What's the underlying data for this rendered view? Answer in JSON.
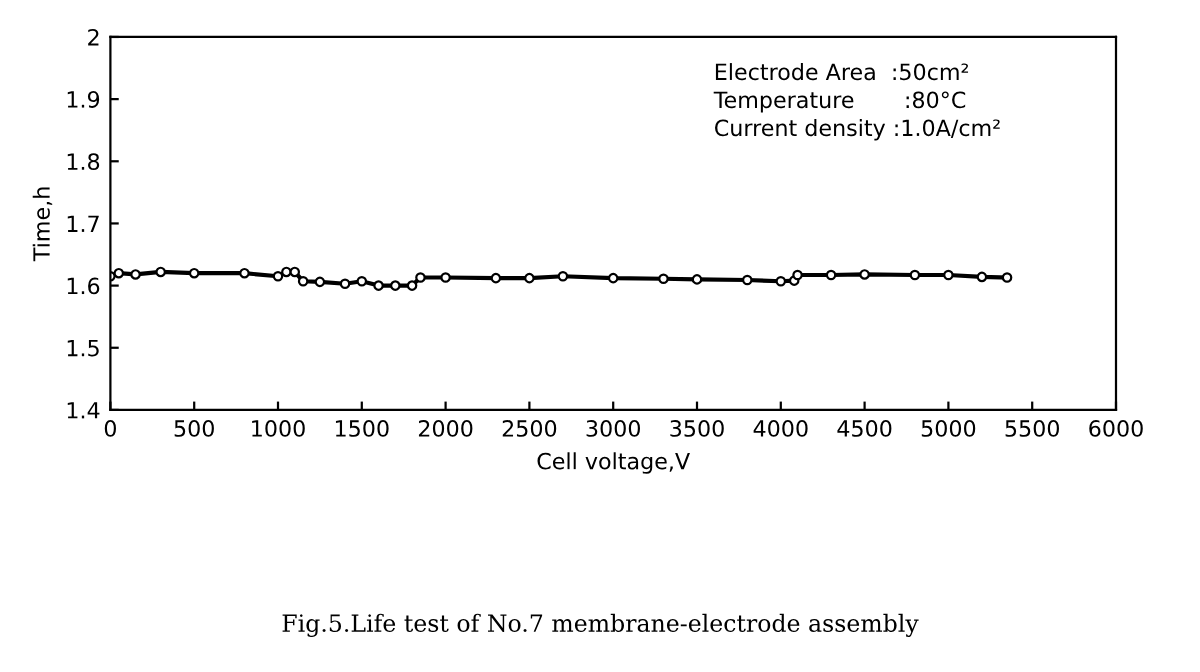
{
  "chart_data": {
    "type": "line",
    "xlabel": "Cell voltage,V",
    "ylabel": "Time,h",
    "x": [
      0,
      50,
      150,
      300,
      500,
      800,
      1000,
      1050,
      1100,
      1150,
      1250,
      1400,
      1500,
      1600,
      1700,
      1800,
      1850,
      2000,
      2300,
      2500,
      2700,
      3000,
      3300,
      3500,
      3800,
      4000,
      4080,
      4100,
      4300,
      4500,
      4800,
      5000,
      5200,
      5350
    ],
    "series": [
      {
        "color": "#000000",
        "values": [
          1.615,
          1.62,
          1.618,
          1.622,
          1.62,
          1.62,
          1.615,
          1.622,
          1.622,
          1.607,
          1.606,
          1.603,
          1.607,
          1.6,
          1.6,
          1.6,
          1.613,
          1.613,
          1.612,
          1.612,
          1.615,
          1.612,
          1.611,
          1.61,
          1.609,
          1.607,
          1.608,
          1.617,
          1.617,
          1.618,
          1.617,
          1.617,
          1.614,
          1.613
        ]
      }
    ],
    "xlim": [
      0,
      6000
    ],
    "xticks": [
      0,
      500,
      1000,
      1500,
      2000,
      2500,
      3000,
      3500,
      4000,
      4500,
      5000,
      5500,
      6000
    ],
    "ylim": [
      1.4,
      2
    ],
    "yticks": [
      {
        "value": 1.4,
        "label": "1.4"
      },
      {
        "value": 1.5,
        "label": "1.5"
      },
      {
        "value": 1.6,
        "label": "1.6"
      },
      {
        "value": 1.7,
        "label": "1.7"
      },
      {
        "value": 1.8,
        "label": "1.8"
      },
      {
        "value": 1.9,
        "label": "1.9"
      },
      {
        "value": 2,
        "label": "2"
      }
    ],
    "marker": "circle",
    "line_style": "solid",
    "grid": false,
    "annotations": [
      "Electrode Area  :50cm²",
      "Temperature       :80°C",
      "Current density :1.0A/cm²",
      "Fig.5.Life test of No.7 membrane-electrode assembly"
    ]
  }
}
